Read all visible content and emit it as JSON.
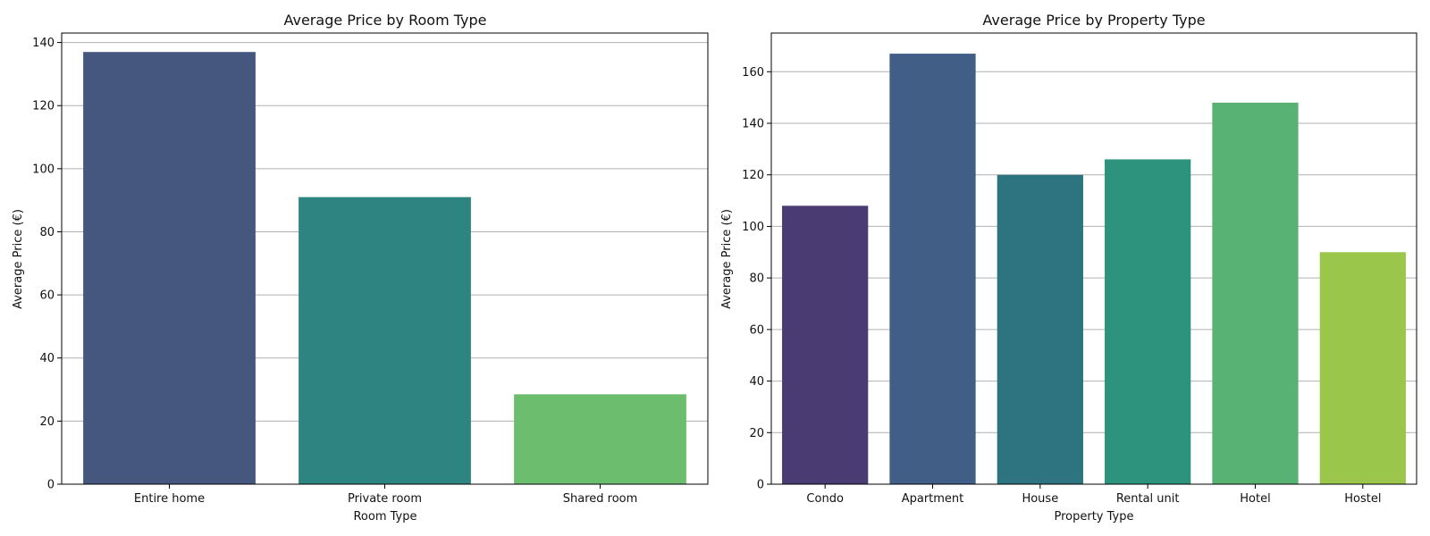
{
  "chart_data": [
    {
      "type": "bar",
      "title": "Average Price by Room Type",
      "xlabel": "Room Type",
      "ylabel": "Average Price (€)",
      "categories": [
        "Entire home",
        "Private room",
        "Shared room"
      ],
      "values": [
        137,
        91,
        28.5
      ],
      "colors": [
        "#46577f",
        "#2e8480",
        "#6dbd6e"
      ],
      "ylim": [
        0,
        143
      ],
      "yticks": [
        0,
        20,
        40,
        60,
        80,
        100,
        120,
        140
      ],
      "grid": "horizontal"
    },
    {
      "type": "bar",
      "title": "Average Price by Property Type",
      "xlabel": "Property Type",
      "ylabel": "Average Price (€)",
      "categories": [
        "Condo",
        "Apartment",
        "House",
        "Rental unit",
        "Hotel",
        "Hostel"
      ],
      "values": [
        108,
        167,
        120,
        126,
        148,
        90
      ],
      "colors": [
        "#4a3b73",
        "#415e87",
        "#2e7480",
        "#2e937d",
        "#58b273",
        "#9bc64c"
      ],
      "ylim": [
        0,
        175
      ],
      "yticks": [
        0,
        20,
        40,
        60,
        80,
        100,
        120,
        140,
        160
      ],
      "grid": "horizontal"
    }
  ]
}
